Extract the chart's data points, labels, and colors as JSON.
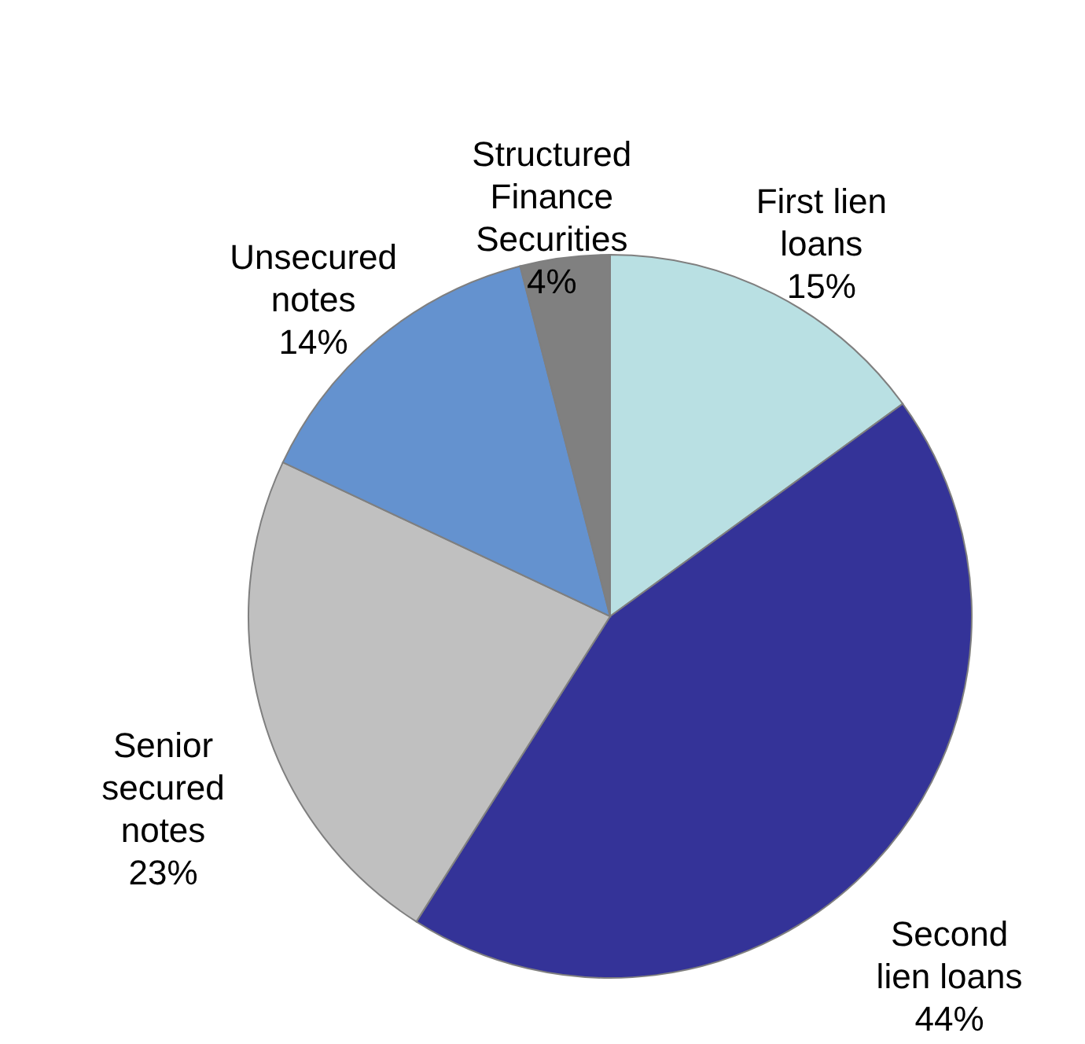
{
  "chart_data": {
    "type": "pie",
    "categories": [
      "First lien loans",
      "Second lien loans",
      "Senior secured notes",
      "Unsecured notes",
      "Structured Finance Securities"
    ],
    "values": [
      15,
      44,
      23,
      14,
      4
    ],
    "colors": [
      "#b9e0e3",
      "#343398",
      "#c0c0c0",
      "#6492cf",
      "#808080"
    ],
    "value_labels": [
      "15%",
      "44%",
      "23%",
      "14%",
      "4%"
    ]
  }
}
